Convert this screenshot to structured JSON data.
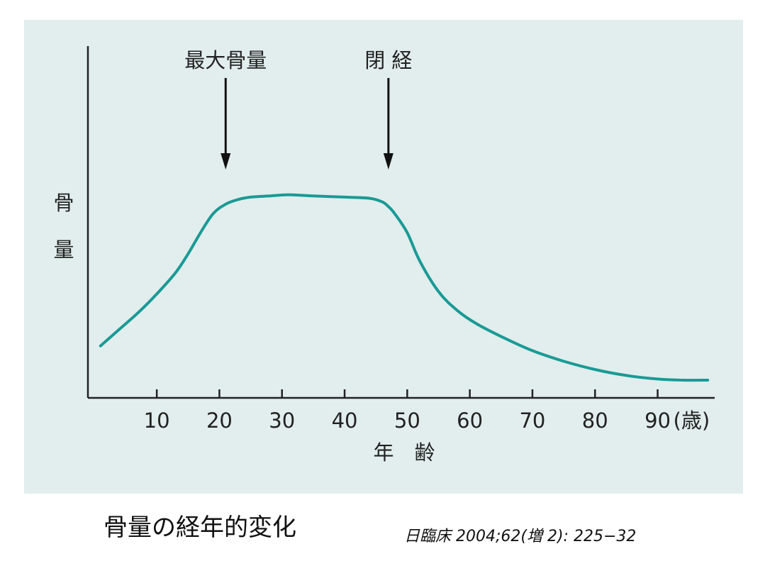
{
  "chart_data": {
    "type": "line",
    "ylabel": "骨量",
    "xlabel": "年　齢",
    "x_unit": "(歳)",
    "xlim": [
      -1,
      99
    ],
    "ylim": [
      0,
      100
    ],
    "x_ticks": [
      10,
      20,
      30,
      40,
      50,
      60,
      70,
      80,
      90
    ],
    "x_tick_labels": [
      "10",
      "20",
      "30",
      "40",
      "50",
      "60",
      "70",
      "80",
      "90"
    ],
    "y_ticks_shown": false,
    "grid": false,
    "line_color": "#1a9a95",
    "series": [
      {
        "x": [
          1,
          4,
          7,
          10,
          13,
          15,
          17,
          19,
          21,
          23,
          25,
          28,
          31,
          35,
          40,
          44,
          46,
          47,
          48,
          50,
          52,
          55,
          58,
          61,
          65,
          70,
          75,
          80,
          85,
          90,
          94,
          98
        ],
        "y": [
          22,
          29,
          36,
          44,
          53,
          61,
          70,
          78,
          82,
          84,
          85,
          85.5,
          86,
          85.5,
          85,
          84.5,
          83,
          81,
          78,
          70,
          58,
          45,
          37,
          31.5,
          26,
          20,
          15.5,
          12,
          9.5,
          8,
          7.5,
          7.5
        ]
      }
    ],
    "annotations": [
      {
        "label": "最大骨量",
        "x": 21,
        "arrow": "down"
      },
      {
        "label": "閉 経",
        "x": 47,
        "arrow": "down"
      }
    ]
  },
  "caption": "骨量の経年的変化",
  "citation": "日臨床 2004;62(増 2): 225−32"
}
